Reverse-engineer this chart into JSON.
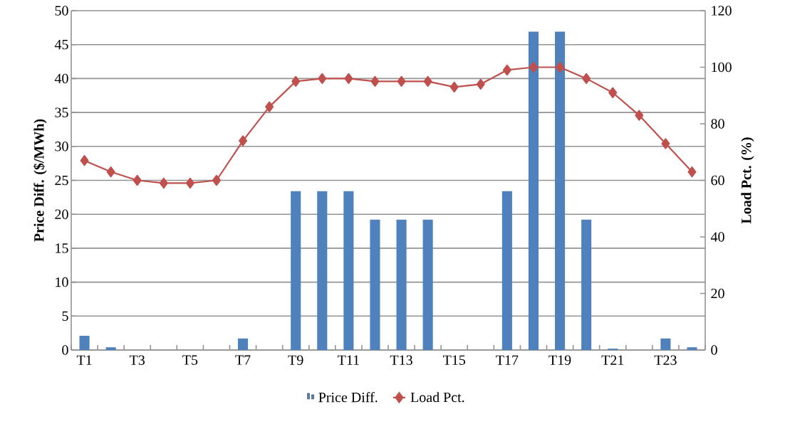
{
  "chart_data": {
    "type": "bar",
    "categories": [
      "T1",
      null,
      "T3",
      null,
      "T5",
      null,
      "T7",
      null,
      "T9",
      null,
      "T11",
      null,
      "T13",
      null,
      "T15",
      null,
      "T17",
      null,
      "T19",
      null,
      "T21",
      null,
      "T23",
      null
    ],
    "series": [
      {
        "name": "Price Diff.",
        "color": "#4f81bd",
        "values": [
          2.1,
          0.4,
          0,
          0,
          0,
          0,
          1.7,
          0,
          23.4,
          23.4,
          23.4,
          19.2,
          19.2,
          19.2,
          0,
          0,
          23.4,
          46.9,
          46.9,
          19.2,
          0.2,
          0,
          1.7,
          0.4
        ]
      },
      {
        "name": "Load Pct.",
        "type": "line",
        "axis": "y2",
        "color": "#c0504d",
        "values": [
          67,
          63,
          60,
          59,
          59,
          60,
          74,
          86,
          95,
          96,
          96,
          95,
          95,
          95,
          93,
          94,
          99,
          100,
          100,
          96,
          91,
          83,
          73,
          63
        ]
      }
    ],
    "ylabel": "Price Diff. ($/MWh)",
    "y2label": "Load Pct. (%)",
    "ylim": [
      0,
      50
    ],
    "yticks": [
      0,
      5,
      10,
      15,
      20,
      25,
      30,
      35,
      40,
      45,
      50
    ],
    "y2lim": [
      0,
      120
    ],
    "y2ticks": [
      0,
      20,
      40,
      60,
      80,
      100,
      120
    ],
    "grid": "y",
    "legend": "bottom",
    "marker": "diamond",
    "line_style": "solid"
  }
}
